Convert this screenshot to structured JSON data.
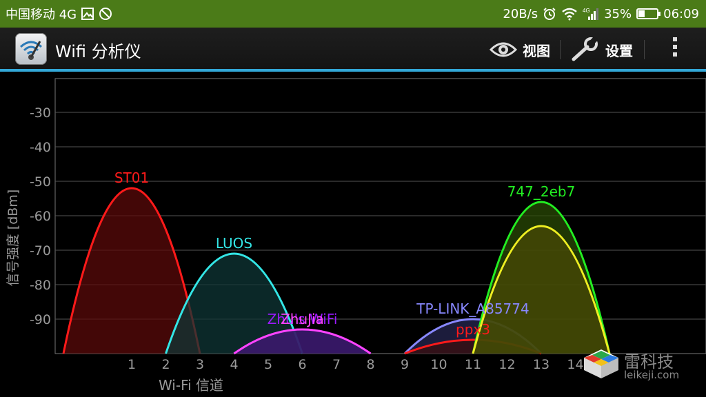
{
  "statusbar": {
    "carrier": "中国移动 4G",
    "speed": "20B/s",
    "battery": "35%",
    "battery_level": 0.35,
    "time": "06:09",
    "network_type": "4G"
  },
  "actionbar": {
    "title": "Wifi 分析仪",
    "view_label": "视图",
    "settings_label": "设置"
  },
  "colors": {
    "statusbar": "#4b7b18",
    "accent_line": "#33a8d8",
    "grid": "#555555",
    "text_gray": "#9a9a9a"
  },
  "chart_data": {
    "type": "area",
    "xlabel": "Wi-Fi 信道",
    "ylabel": "信号强度 [dBm]",
    "xlim": [
      -1,
      15
    ],
    "ylim": [
      -100,
      -20
    ],
    "x_ticks": [
      1,
      2,
      3,
      4,
      5,
      6,
      7,
      8,
      9,
      10,
      11,
      12,
      13,
      14
    ],
    "y_ticks": [
      -30,
      -40,
      -50,
      -60,
      -70,
      -80,
      -90
    ],
    "grid": true,
    "series": [
      {
        "name": "ST01",
        "channel": 1,
        "signal": -52,
        "color": "#ff1a1a",
        "fill": "#5a0a0a"
      },
      {
        "name": "LUOS",
        "channel": 4,
        "signal": -71,
        "color": "#33e6e6",
        "fill": "#0f3535"
      },
      {
        "name": "Zhu's WiFi",
        "channel": 6,
        "signal": -93,
        "color": "#9a1aff",
        "fill": "#3a1a6a"
      },
      {
        "name": "ZhuJia",
        "channel": 6,
        "signal": -93,
        "color": "#ff44ff",
        "fill": "#3a1a6a"
      },
      {
        "name": "TP-LINK_A85774",
        "channel": 11,
        "signal": -90,
        "color": "#8888ff",
        "fill": "#262650"
      },
      {
        "name": "ppx3",
        "channel": 11,
        "signal": -96,
        "color": "#ff1a1a",
        "fill": "#3a0d0d"
      },
      {
        "name": "747_2eb7",
        "channel": 13,
        "signal": -56,
        "color": "#22ee22",
        "fill": "#2a4a05"
      },
      {
        "name": "",
        "channel": 13,
        "signal": -63,
        "color": "#eeee22",
        "fill": "#4a4a05"
      }
    ]
  },
  "watermark": {
    "cn": "雷科技",
    "en": "leikeji.com"
  }
}
